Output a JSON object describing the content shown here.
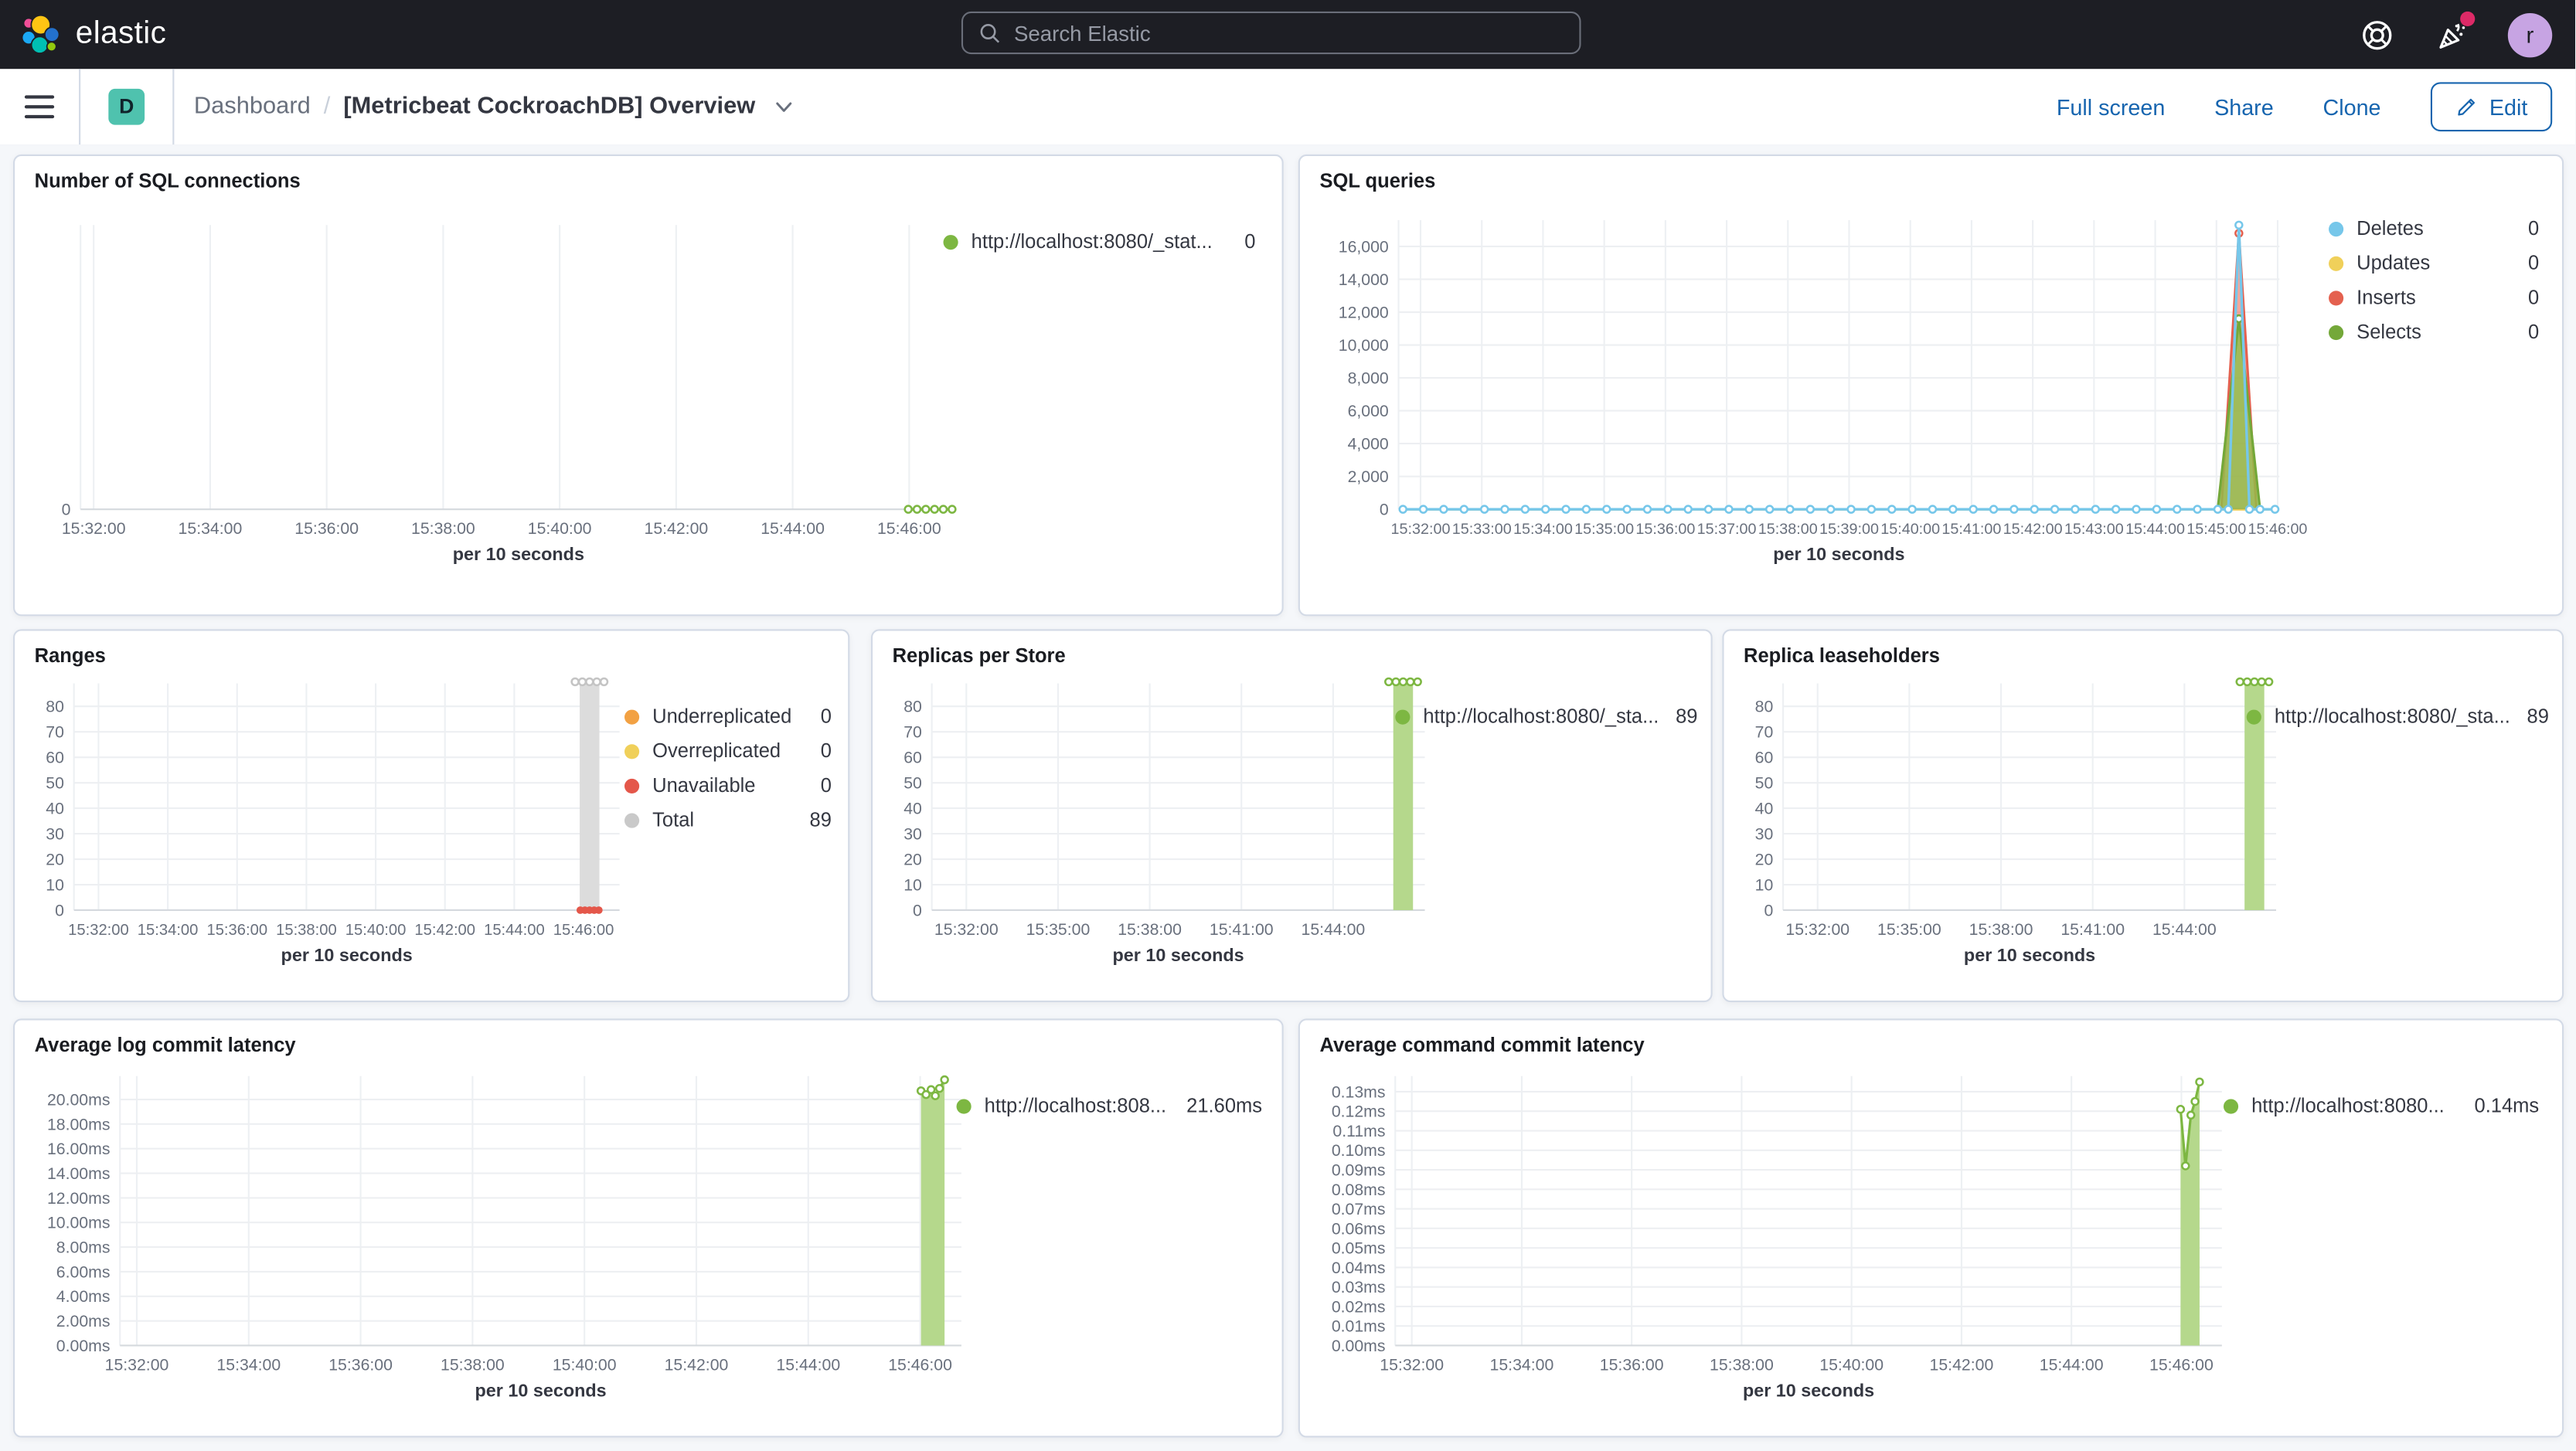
{
  "header": {
    "brand": "elastic",
    "search_placeholder": "Search Elastic",
    "user_initial": "r"
  },
  "toolbar": {
    "badge": "D",
    "breadcrumb_root": "Dashboard",
    "breadcrumb_sep": "/",
    "title": "[Metricbeat CockroachDB] Overview",
    "actions": [
      "Full screen",
      "Share",
      "Clone"
    ],
    "edit_label": "Edit"
  },
  "colors": {
    "accent_link": "#1765af",
    "green_line": "#7db742",
    "green_fill": "#b5d88c",
    "blue": "#76c7ea",
    "yellow": "#f0d05a",
    "red": "#e4614f",
    "orange": "#f2a143",
    "gray_bar": "#dcdcdc"
  },
  "chart_data": [
    {
      "id": "sql_connections",
      "type": "line",
      "title": "Number of SQL connections",
      "xlabel": "per 10 seconds",
      "x_ticks": [
        "15:32:00",
        "15:34:00",
        "15:36:00",
        "15:38:00",
        "15:40:00",
        "15:42:00",
        "15:44:00",
        "15:46:00"
      ],
      "x_first": 0.015,
      "x_step": 0.133,
      "y_ticks": [
        {
          "v": 0,
          "label": "0"
        }
      ],
      "ylim": [
        0,
        1
      ],
      "series": [
        {
          "name": "http://localhost:8080/_stat...",
          "legend_value": "0",
          "color": "#7db742",
          "type": "line",
          "marker": "open",
          "z": 1,
          "parts": [
            {
              "const": 0,
              "from": 0.945,
              "to": 0.995,
              "n": 6
            }
          ]
        }
      ]
    },
    {
      "id": "sql_queries",
      "type": "line",
      "title": "SQL queries",
      "xlabel": "per 10 seconds",
      "x_ticks": [
        "15:32:00",
        "15:33:00",
        "15:34:00",
        "15:35:00",
        "15:36:00",
        "15:37:00",
        "15:38:00",
        "15:39:00",
        "15:40:00",
        "15:41:00",
        "15:42:00",
        "15:43:00",
        "15:44:00",
        "15:45:00",
        "15:46:00"
      ],
      "x_first": 0.025,
      "x_step": 0.0695,
      "x_font": 9.3,
      "y_ticks": [
        {
          "v": 0,
          "label": "0"
        },
        {
          "v": 2000,
          "label": "2,000"
        },
        {
          "v": 4000,
          "label": "4,000"
        },
        {
          "v": 6000,
          "label": "6,000"
        },
        {
          "v": 8000,
          "label": "8,000"
        },
        {
          "v": 10000,
          "label": "10,000"
        },
        {
          "v": 12000,
          "label": "12,000"
        },
        {
          "v": 14000,
          "label": "14,000"
        },
        {
          "v": 16000,
          "label": "16,000"
        }
      ],
      "ylim": [
        0,
        17600
      ],
      "series": [
        {
          "name": "Deletes",
          "legend_value": "0",
          "color": "#76c7ea",
          "type": "line",
          "marker": "open",
          "z": 4,
          "parts": [
            {
              "const": 0,
              "from": 0.005,
              "to": 0.93,
              "n": 41
            },
            {
              "pts": [
                [
                  0.942,
                  0
                ],
                [
                  0.954,
                  17300
                ],
                [
                  0.966,
                  0
                ]
              ]
            },
            {
              "const": 0,
              "from": 0.978,
              "to": 0.995,
              "n": 2
            }
          ]
        },
        {
          "name": "Updates",
          "legend_value": "0",
          "color": "#f0d05a",
          "type": "line",
          "marker": "none",
          "z": 1,
          "parts": [
            {
              "const": 0,
              "from": 0.005,
              "to": 0.995,
              "n": 2
            }
          ]
        },
        {
          "name": "Inserts",
          "legend_value": "0",
          "color": "#e4614f",
          "fill": "rgba(228,97,79,0.55)",
          "type": "area",
          "marker": "apex",
          "z": 2,
          "parts": [
            {
              "pts": [
                [
                  0.934,
                  0
                ],
                [
                  0.954,
                  16800
                ],
                [
                  0.974,
                  0
                ]
              ]
            }
          ]
        },
        {
          "name": "Selects",
          "legend_value": "0",
          "color": "#74a839",
          "fill": "rgba(141,191,73,0.8)",
          "type": "area",
          "marker": "apex",
          "z": 3,
          "parts": [
            {
              "pts": [
                [
                  0.93,
                  0
                ],
                [
                  0.954,
                  11600
                ],
                [
                  0.978,
                  0
                ]
              ]
            }
          ]
        }
      ]
    },
    {
      "id": "ranges",
      "type": "bar",
      "title": "Ranges",
      "xlabel": "per 10 seconds",
      "x_ticks": [
        "15:32:00",
        "15:34:00",
        "15:36:00",
        "15:38:00",
        "15:40:00",
        "15:42:00",
        "15:44:00",
        "15:46:00"
      ],
      "x_first": 0.045,
      "x_step": 0.127,
      "x_font": 9.5,
      "y_ticks": [
        {
          "v": 0,
          "label": "0"
        },
        {
          "v": 10,
          "label": "10"
        },
        {
          "v": 20,
          "label": "20"
        },
        {
          "v": 30,
          "label": "30"
        },
        {
          "v": 40,
          "label": "40"
        },
        {
          "v": 50,
          "label": "50"
        },
        {
          "v": 60,
          "label": "60"
        },
        {
          "v": 70,
          "label": "70"
        },
        {
          "v": 80,
          "label": "80"
        }
      ],
      "ylim": [
        0,
        89
      ],
      "series": [
        {
          "name": "Underreplicated",
          "legend_value": "0",
          "color": "#f2a143",
          "type": "line",
          "marker": "none",
          "z": 1,
          "parts": []
        },
        {
          "name": "Overreplicated",
          "legend_value": "0",
          "color": "#f0d05a",
          "type": "line",
          "marker": "none",
          "z": 1,
          "parts": []
        },
        {
          "name": "Unavailable",
          "legend_value": "0",
          "color": "#e4574a",
          "type": "dots",
          "z": 3,
          "parts": [
            {
              "const": 0,
              "from": 0.928,
              "to": 0.962,
              "n": 5
            }
          ]
        },
        {
          "name": "Total",
          "legend_value": "89",
          "color": "#c9c9c9",
          "type": "bar",
          "fill": "#dcdcdc",
          "x": 0.945,
          "w": 12,
          "v": 89,
          "dots": 5,
          "dot_color": "#c4c4c4",
          "z": 2
        }
      ]
    },
    {
      "id": "replicas_per_store",
      "type": "bar",
      "title": "Replicas per Store",
      "xlabel": "per 10 seconds",
      "x_ticks": [
        "15:32:00",
        "15:35:00",
        "15:38:00",
        "15:41:00",
        "15:44:00"
      ],
      "x_first": 0.07,
      "x_step": 0.186,
      "y_ticks": [
        {
          "v": 0,
          "label": "0"
        },
        {
          "v": 10,
          "label": "10"
        },
        {
          "v": 20,
          "label": "20"
        },
        {
          "v": 30,
          "label": "30"
        },
        {
          "v": 40,
          "label": "40"
        },
        {
          "v": 50,
          "label": "50"
        },
        {
          "v": 60,
          "label": "60"
        },
        {
          "v": 70,
          "label": "70"
        },
        {
          "v": 80,
          "label": "80"
        }
      ],
      "ylim": [
        0,
        89
      ],
      "series": [
        {
          "name": "http://localhost:8080/_sta...",
          "legend_value": "89",
          "color": "#7db742",
          "type": "bar",
          "fill": "#b5d88c",
          "x": 0.956,
          "w": 12,
          "v": 89,
          "dots": 5,
          "dot_color": "#7db742",
          "z": 1
        }
      ]
    },
    {
      "id": "replica_leaseholders",
      "type": "bar",
      "title": "Replica leaseholders",
      "xlabel": "per 10 seconds",
      "x_ticks": [
        "15:32:00",
        "15:35:00",
        "15:38:00",
        "15:41:00",
        "15:44:00"
      ],
      "x_first": 0.07,
      "x_step": 0.186,
      "y_ticks": [
        {
          "v": 0,
          "label": "0"
        },
        {
          "v": 10,
          "label": "10"
        },
        {
          "v": 20,
          "label": "20"
        },
        {
          "v": 30,
          "label": "30"
        },
        {
          "v": 40,
          "label": "40"
        },
        {
          "v": 50,
          "label": "50"
        },
        {
          "v": 60,
          "label": "60"
        },
        {
          "v": 70,
          "label": "70"
        },
        {
          "v": 80,
          "label": "80"
        }
      ],
      "ylim": [
        0,
        89
      ],
      "series": [
        {
          "name": "http://localhost:8080/_sta...",
          "legend_value": "89",
          "color": "#7db742",
          "type": "bar",
          "fill": "#b5d88c",
          "x": 0.956,
          "w": 12,
          "v": 89,
          "dots": 5,
          "dot_color": "#7db742",
          "z": 1
        }
      ]
    },
    {
      "id": "avg_log_commit_latency",
      "type": "area",
      "title": "Average log commit latency",
      "xlabel": "per 10 seconds",
      "x_ticks": [
        "15:32:00",
        "15:34:00",
        "15:36:00",
        "15:38:00",
        "15:40:00",
        "15:42:00",
        "15:44:00",
        "15:46:00"
      ],
      "x_first": 0.02,
      "x_step": 0.133,
      "y_ticks": [
        {
          "v": 0,
          "label": "0.00ms"
        },
        {
          "v": 2,
          "label": "2.00ms"
        },
        {
          "v": 4,
          "label": "4.00ms"
        },
        {
          "v": 6,
          "label": "6.00ms"
        },
        {
          "v": 8,
          "label": "8.00ms"
        },
        {
          "v": 10,
          "label": "10.00ms"
        },
        {
          "v": 12,
          "label": "12.00ms"
        },
        {
          "v": 14,
          "label": "14.00ms"
        },
        {
          "v": 16,
          "label": "16.00ms"
        },
        {
          "v": 18,
          "label": "18.00ms"
        },
        {
          "v": 20,
          "label": "20.00ms"
        }
      ],
      "ylim": [
        0,
        21.9
      ],
      "series": [
        {
          "name": "http://localhost:808...",
          "legend_value": "21.60ms",
          "color": "#7db742",
          "fill": "#b5d88c",
          "type": "area",
          "marker": "open",
          "z": 1,
          "parts": [
            {
              "pts": [
                [
                  0.952,
                  20.7
                ],
                [
                  0.958,
                  20.4
                ],
                [
                  0.964,
                  20.8
                ],
                [
                  0.969,
                  20.3
                ],
                [
                  0.974,
                  20.9
                ],
                [
                  0.98,
                  21.6
                ]
              ]
            }
          ]
        }
      ]
    },
    {
      "id": "avg_command_commit_latency",
      "type": "area",
      "title": "Average command commit latency",
      "xlabel": "per 10 seconds",
      "x_ticks": [
        "15:32:00",
        "15:34:00",
        "15:36:00",
        "15:38:00",
        "15:40:00",
        "15:42:00",
        "15:44:00",
        "15:46:00"
      ],
      "x_first": 0.02,
      "x_step": 0.133,
      "y_ticks": [
        {
          "v": 0,
          "label": "0.00ms"
        },
        {
          "v": 0.01,
          "label": "0.01ms"
        },
        {
          "v": 0.02,
          "label": "0.02ms"
        },
        {
          "v": 0.03,
          "label": "0.03ms"
        },
        {
          "v": 0.04,
          "label": "0.04ms"
        },
        {
          "v": 0.05,
          "label": "0.05ms"
        },
        {
          "v": 0.06,
          "label": "0.06ms"
        },
        {
          "v": 0.07,
          "label": "0.07ms"
        },
        {
          "v": 0.08,
          "label": "0.08ms"
        },
        {
          "v": 0.09,
          "label": "0.09ms"
        },
        {
          "v": 0.1,
          "label": "0.10ms"
        },
        {
          "v": 0.11,
          "label": "0.11ms"
        },
        {
          "v": 0.12,
          "label": "0.12ms"
        },
        {
          "v": 0.13,
          "label": "0.13ms"
        }
      ],
      "ylim": [
        0,
        0.138
      ],
      "series": [
        {
          "name": "http://localhost:8080...",
          "legend_value": "0.14ms",
          "color": "#7db742",
          "fill": "#b5d88c",
          "type": "area",
          "marker": "open",
          "z": 1,
          "parts": [
            {
              "pts": [
                [
                  0.95,
                  0.121
                ],
                [
                  0.956,
                  0.092
                ],
                [
                  0.9625,
                  0.118
                ],
                [
                  0.9675,
                  0.125
                ],
                [
                  0.973,
                  0.135
                ]
              ]
            }
          ]
        }
      ]
    }
  ]
}
